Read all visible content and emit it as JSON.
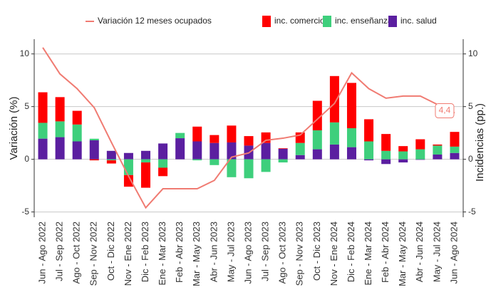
{
  "chart_data": {
    "type": "bar",
    "categories": [
      "Jun - Ago 2022",
      "Jul - Sep 2022",
      "Ago - Oct 2022",
      "Sep - Nov 2022",
      "Oct - Dic 2022",
      "Nov - Ene 2022",
      "Dic - Feb 2023",
      "Ene - Mar 2023",
      "Feb - Abr 2023",
      "Mar - May 2023",
      "Abr - Jun 2023",
      "May - Jul 2023",
      "Jun - Ago 2023",
      "Jul - Sep 2023",
      "Ago - Oct 2023",
      "Sep - Nov 2023",
      "Oct - Dic 2023",
      "Nov - Ene 2024",
      "Dic - Feb 2024",
      "Ene - Mar 2024",
      "Feb - Abr 2024",
      "Mar - May 2024",
      "Abr - Jun 2024",
      "May - Jul 2024",
      "Jun - Ago 2024"
    ],
    "series": [
      {
        "name": "Variación 12 meses ocupados",
        "type": "line",
        "axis": "y",
        "color": "#f07b72",
        "values": [
          10.6,
          8.1,
          6.7,
          4.9,
          1.6,
          -1.6,
          -4.6,
          -2.8,
          -2.8,
          -2.8,
          -2.0,
          0.2,
          0.6,
          1.8,
          2.0,
          2.3,
          3.8,
          5.3,
          8.2,
          6.7,
          5.8,
          6.0,
          6.0,
          5.2,
          4.4
        ]
      },
      {
        "name": "inc. comercio",
        "type": "bar",
        "axis": "y2",
        "color": "#ff0000",
        "values": [
          2.9,
          2.3,
          1.3,
          -0.1,
          -0.3,
          -1.1,
          -2.4,
          -0.8,
          0,
          1.4,
          0.75,
          1.6,
          0.9,
          1.0,
          0.05,
          1.0,
          2.8,
          4.4,
          4.3,
          2.1,
          1.6,
          0.5,
          0.95,
          0.1,
          1.4
        ]
      },
      {
        "name": "inc. enseñanza",
        "type": "bar",
        "axis": "y2",
        "color": "#3ecf7c",
        "values": [
          1.5,
          1.5,
          1.6,
          0.15,
          -0.1,
          -1.5,
          -0.3,
          -0.8,
          0.5,
          -0.1,
          -0.55,
          -1.7,
          -1.8,
          -1.2,
          -0.3,
          1.15,
          1.8,
          2.1,
          1.8,
          1.7,
          0.8,
          0.75,
          0.95,
          0.85,
          0.6
        ]
      },
      {
        "name": "inc. salud",
        "type": "bar",
        "axis": "y2",
        "color": "#5b1fa0",
        "values": [
          1.96,
          2.1,
          1.7,
          1.8,
          0.8,
          0.6,
          0.8,
          1.5,
          2.0,
          1.7,
          1.55,
          1.6,
          1.3,
          1.55,
          1.0,
          0.4,
          0.95,
          1.4,
          1.15,
          -0.1,
          -0.45,
          -0.3,
          -0.05,
          0.45,
          0.6
        ]
      }
    ],
    "ylabel": "Variación (%)",
    "y2label": "Incidencias (pp.)",
    "ylim": [
      -5.5,
      11.4
    ],
    "yticks": [
      -5,
      0,
      5,
      10
    ],
    "y2lim": [
      -5.5,
      11.4
    ],
    "y2ticks": [
      -5,
      0,
      5,
      10
    ],
    "annotation": "4,4",
    "grid": true,
    "legend": "top"
  }
}
